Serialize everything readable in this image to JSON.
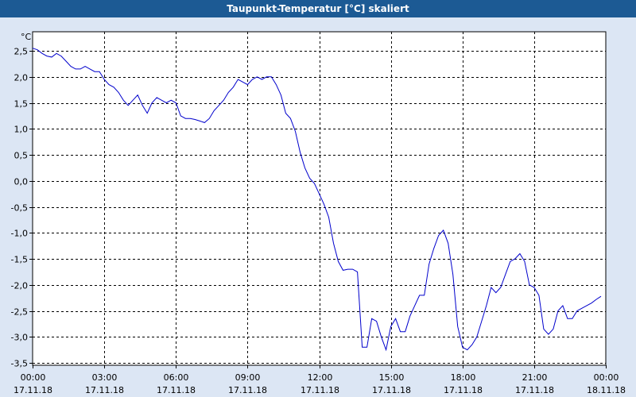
{
  "window": {
    "title": "Taupunkt-Temperatur [°C] skaliert"
  },
  "colors": {
    "background": "#dce6f4",
    "plot_background": "#ffffff",
    "title_bar": "#1c5a94",
    "line": "#0000cc",
    "grid": "#000000"
  },
  "chart_data": {
    "type": "line",
    "title": "Taupunkt-Temperatur [°C] skaliert",
    "ylabel": "°C",
    "xlabel": "",
    "ylim": [
      -3.55,
      2.75
    ],
    "xlim": [
      0,
      24
    ],
    "grid": true,
    "y_ticks": [
      {
        "value": 2.5,
        "label": "2,5"
      },
      {
        "value": 2.0,
        "label": "2,0"
      },
      {
        "value": 1.5,
        "label": "1,5"
      },
      {
        "value": 1.0,
        "label": "1,0"
      },
      {
        "value": 0.5,
        "label": "0,5"
      },
      {
        "value": 0.0,
        "label": "0,0"
      },
      {
        "value": -0.5,
        "label": "-0,5"
      },
      {
        "value": -1.0,
        "label": "-1,0"
      },
      {
        "value": -1.5,
        "label": "-1,5"
      },
      {
        "value": -2.0,
        "label": "-2,0"
      },
      {
        "value": -2.5,
        "label": "-2,5"
      },
      {
        "value": -3.0,
        "label": "-3,0"
      },
      {
        "value": -3.5,
        "label": "-3,5"
      }
    ],
    "x_ticks": [
      {
        "hour": 0,
        "time": "00:00",
        "date": "17.11.18"
      },
      {
        "hour": 3,
        "time": "03:00",
        "date": "17.11.18"
      },
      {
        "hour": 6,
        "time": "06:00",
        "date": "17.11.18"
      },
      {
        "hour": 9,
        "time": "09:00",
        "date": "17.11.18"
      },
      {
        "hour": 12,
        "time": "12:00",
        "date": "17.11.18"
      },
      {
        "hour": 15,
        "time": "15:00",
        "date": "17.11.18"
      },
      {
        "hour": 18,
        "time": "18:00",
        "date": "17.11.18"
      },
      {
        "hour": 21,
        "time": "21:00",
        "date": "17.11.18"
      },
      {
        "hour": 24,
        "time": "00:00",
        "date": "18.11.18"
      }
    ],
    "series": [
      {
        "x": [
          0,
          0.2,
          0.4,
          0.6,
          0.8,
          1.0,
          1.2,
          1.4,
          1.6,
          1.8,
          2.0,
          2.2,
          2.4,
          2.6,
          2.8,
          3.0,
          3.2,
          3.4,
          3.6,
          3.8,
          4.0,
          4.2,
          4.4,
          4.6,
          4.8,
          5.0,
          5.2,
          5.4,
          5.6,
          5.8,
          6.0,
          6.2,
          6.4,
          6.6,
          6.8,
          7.0,
          7.2,
          7.4,
          7.6,
          7.8,
          8.0,
          8.2,
          8.4,
          8.6,
          8.8,
          9.0,
          9.2,
          9.4,
          9.6,
          9.8,
          10.0,
          10.2,
          10.4,
          10.6,
          10.8,
          11.0,
          11.2,
          11.4,
          11.6,
          11.8,
          12.0,
          12.2,
          12.4,
          12.6,
          12.8,
          13.0,
          13.2,
          13.4,
          13.6,
          13.8,
          14.0,
          14.2,
          14.4,
          14.6,
          14.8,
          15.0,
          15.2,
          15.4,
          15.6,
          15.8,
          16.0,
          16.2,
          16.4,
          16.6,
          16.8,
          17.0,
          17.2,
          17.4,
          17.6,
          17.8,
          18.0,
          18.2,
          18.4,
          18.6,
          18.8,
          19.0,
          19.2,
          19.4,
          19.6,
          19.8,
          20.0,
          20.2,
          20.4,
          20.6,
          20.8,
          21.0,
          21.2,
          21.4,
          21.6,
          21.8,
          22.0,
          22.2,
          22.4,
          22.6,
          22.8,
          23.0,
          23.2,
          23.4,
          23.6,
          23.8
        ],
        "y": [
          2.55,
          2.52,
          2.45,
          2.4,
          2.38,
          2.45,
          2.4,
          2.3,
          2.2,
          2.15,
          2.15,
          2.2,
          2.15,
          2.1,
          2.1,
          1.95,
          1.85,
          1.8,
          1.7,
          1.55,
          1.45,
          1.55,
          1.65,
          1.45,
          1.3,
          1.5,
          1.6,
          1.55,
          1.5,
          1.55,
          1.5,
          1.25,
          1.2,
          1.2,
          1.18,
          1.15,
          1.12,
          1.2,
          1.35,
          1.45,
          1.55,
          1.7,
          1.8,
          1.95,
          1.9,
          1.85,
          1.95,
          2.0,
          1.95,
          2.0,
          2.0,
          1.85,
          1.65,
          1.3,
          1.2,
          0.95,
          0.55,
          0.25,
          0.05,
          -0.05,
          -0.25,
          -0.45,
          -0.7,
          -1.2,
          -1.55,
          -1.72,
          -1.7,
          -1.7,
          -1.75,
          -3.2,
          -3.2,
          -2.65,
          -2.7,
          -3.0,
          -3.25,
          -2.8,
          -2.65,
          -2.9,
          -2.9,
          -2.6,
          -2.4,
          -2.2,
          -2.2,
          -1.6,
          -1.3,
          -1.05,
          -0.95,
          -1.2,
          -1.8,
          -2.8,
          -3.2,
          -3.25,
          -3.15,
          -3.0,
          -2.7,
          -2.4,
          -2.05,
          -2.15,
          -2.05,
          -1.8,
          -1.55,
          -1.5,
          -1.4,
          -1.55,
          -2.0,
          -2.05,
          -2.2,
          -2.85,
          -2.95,
          -2.85,
          -2.5,
          -2.4,
          -2.65,
          -2.65,
          -2.5,
          -2.45,
          -2.4,
          -2.35,
          -2.28,
          -2.22
        ]
      }
    ]
  }
}
